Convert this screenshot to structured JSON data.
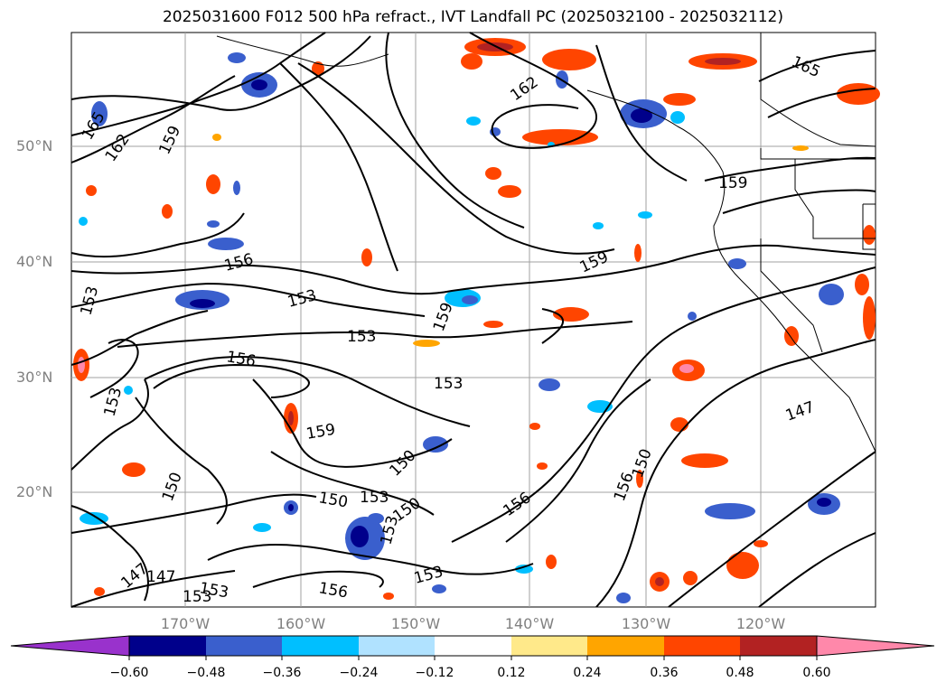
{
  "title": "2025031600 F012 500 hPa refract., IVT Landfall PC (2025032100 - 2025032112)",
  "lat_labels": [
    "50°N",
    "40°N",
    "30°N",
    "20°N"
  ],
  "lon_labels": [
    "170°W",
    "160°W",
    "150°W",
    "140°W",
    "130°W",
    "120°W"
  ],
  "contour_labels": [
    "165",
    "162",
    "159",
    "156",
    "153",
    "150",
    "147"
  ],
  "colorbar": {
    "ticks": [
      "−0.60",
      "−0.48",
      "−0.36",
      "−0.24",
      "−0.12",
      "0.12",
      "0.24",
      "0.36",
      "0.48",
      "0.60"
    ],
    "colors": [
      "#9932cc",
      "#00008b",
      "#3a5fcd",
      "#00bfff",
      "#b0e2ff",
      "#ffffff",
      "#ffe98a",
      "#ffa500",
      "#ff4500",
      "#b22222",
      "#ff88aa"
    ]
  }
}
